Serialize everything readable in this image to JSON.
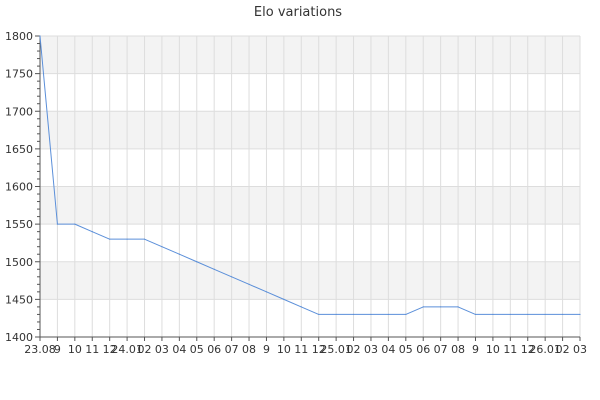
{
  "chart_data": {
    "type": "line",
    "title": "Elo variations",
    "xlabel": "",
    "ylabel": "",
    "x": [
      "23.08",
      "9",
      "10",
      "11",
      "12",
      "24.01",
      "02",
      "03",
      "04",
      "05",
      "06",
      "07",
      "08",
      "9",
      "10",
      "11",
      "12",
      "25.01",
      "02",
      "03",
      "04",
      "05",
      "06",
      "07",
      "08",
      "9",
      "10",
      "11",
      "12",
      "26.01",
      "02",
      "03"
    ],
    "x_tick_labels": [
      "23.08",
      "9",
      "10",
      "11",
      "12",
      "24.01",
      "02",
      "03",
      "04",
      "05",
      "06",
      "07",
      "08",
      "9",
      "10",
      "11",
      "12",
      "25.01",
      "02",
      "03",
      "04",
      "05",
      "06",
      "07",
      "08",
      "9",
      "10",
      "11",
      "12",
      "26.01",
      "02",
      "03"
    ],
    "series": [
      {
        "name": "",
        "values": [
          1800,
          1550,
          1550,
          1540,
          1530,
          1530,
          1530,
          1520,
          1510,
          1500,
          1490,
          1480,
          1470,
          1460,
          1450,
          1440,
          1430,
          1430,
          1430,
          1430,
          1430,
          1430,
          1440,
          1440,
          1440,
          1430,
          1430,
          1430,
          1430,
          1430,
          1430,
          1430
        ]
      }
    ],
    "ylim": [
      1400,
      1800
    ],
    "y_ticks": [
      1400,
      1450,
      1500,
      1550,
      1600,
      1650,
      1700,
      1750,
      1800
    ],
    "grid": true,
    "banded_background": true,
    "colors": {
      "line": "#5b8fd9",
      "band": "#f3f3f3",
      "grid": "#dddddd",
      "axis": "#555555",
      "text": "#333333"
    }
  }
}
